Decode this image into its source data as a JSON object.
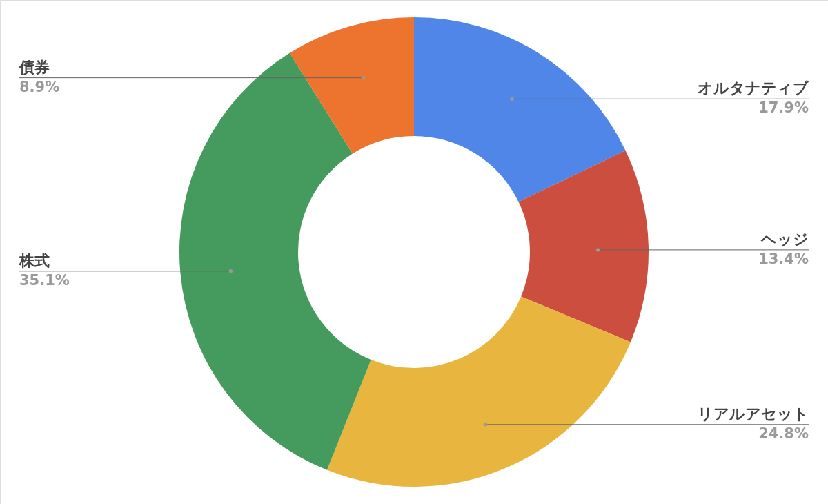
{
  "chart_data": {
    "type": "donut",
    "categories": [
      "オルタナティブ",
      "ヘッジ",
      "リアルアセット",
      "株式",
      "債券"
    ],
    "values": [
      17.9,
      13.4,
      24.8,
      35.1,
      8.9
    ],
    "value_labels": [
      "17.9%",
      "13.4%",
      "24.8%",
      "35.1%",
      "8.9%"
    ],
    "colors": [
      "#4f86e8",
      "#cc4e3e",
      "#e8b63e",
      "#459a5d",
      "#ec742f"
    ]
  }
}
